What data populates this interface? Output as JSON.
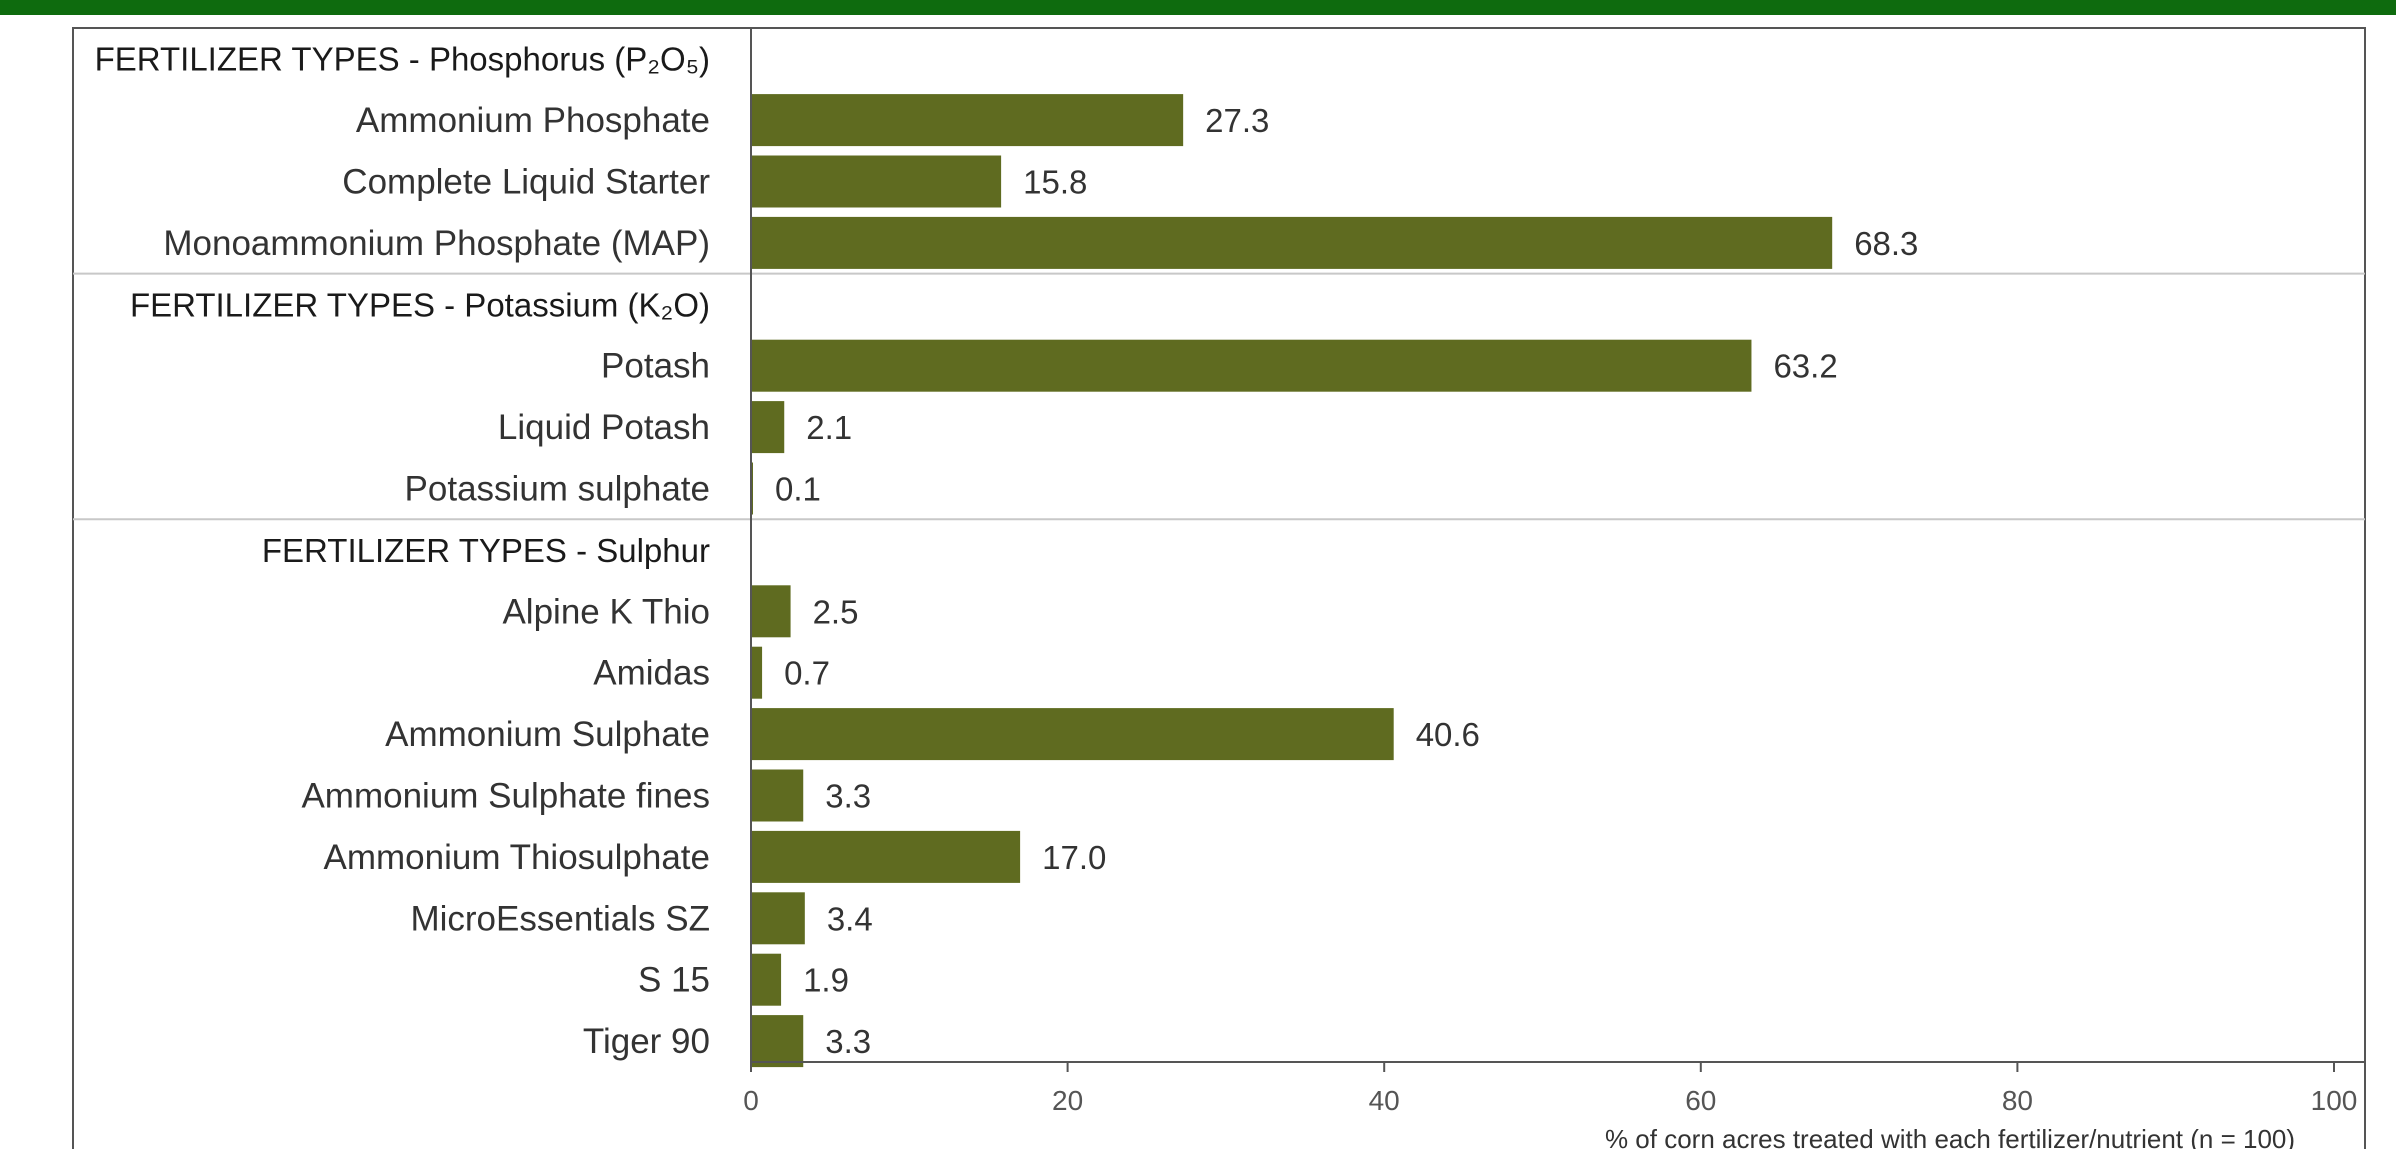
{
  "chart_data": {
    "type": "bar",
    "orientation": "horizontal",
    "groups": [
      {
        "header": "FERTILIZER TYPES - Phosphorus (P₂O₅)",
        "items": [
          {
            "label": "Ammonium Phosphate",
            "value": 27.3,
            "display": "27.3"
          },
          {
            "label": "Complete Liquid Starter",
            "value": 15.8,
            "display": "15.8"
          },
          {
            "label": "Monoammonium Phosphate (MAP)",
            "value": 68.3,
            "display": "68.3"
          }
        ]
      },
      {
        "header": "FERTILIZER TYPES - Potassium (K₂O)",
        "items": [
          {
            "label": "Potash",
            "value": 63.2,
            "display": "63.2"
          },
          {
            "label": "Liquid Potash",
            "value": 2.1,
            "display": "2.1"
          },
          {
            "label": "Potassium sulphate",
            "value": 0.1,
            "display": "0.1"
          }
        ]
      },
      {
        "header": "FERTILIZER TYPES - Sulphur",
        "items": [
          {
            "label": "Alpine K Thio",
            "value": 2.5,
            "display": "2.5"
          },
          {
            "label": "Amidas",
            "value": 0.7,
            "display": "0.7"
          },
          {
            "label": "Ammonium Sulphate",
            "value": 40.6,
            "display": "40.6"
          },
          {
            "label": "Ammonium Sulphate fines",
            "value": 3.3,
            "display": "3.3"
          },
          {
            "label": "Ammonium Thiosulphate",
            "value": 17.0,
            "display": "17.0"
          },
          {
            "label": "MicroEssentials SZ",
            "value": 3.4,
            "display": "3.4"
          },
          {
            "label": "S 15",
            "value": 1.9,
            "display": "1.9"
          },
          {
            "label": "Tiger 90",
            "value": 3.3,
            "display": "3.3"
          }
        ]
      }
    ],
    "xlim": [
      0,
      100
    ],
    "xticks": [
      0,
      20,
      40,
      60,
      80,
      100
    ],
    "xlabel": "% of corn acres treated with each fertilizer/nutrient (n = 100)",
    "ylabel": "",
    "grid": false,
    "legend": "none",
    "bar_color": "#5f6b20",
    "header_band_color": "#0e6b0e"
  }
}
